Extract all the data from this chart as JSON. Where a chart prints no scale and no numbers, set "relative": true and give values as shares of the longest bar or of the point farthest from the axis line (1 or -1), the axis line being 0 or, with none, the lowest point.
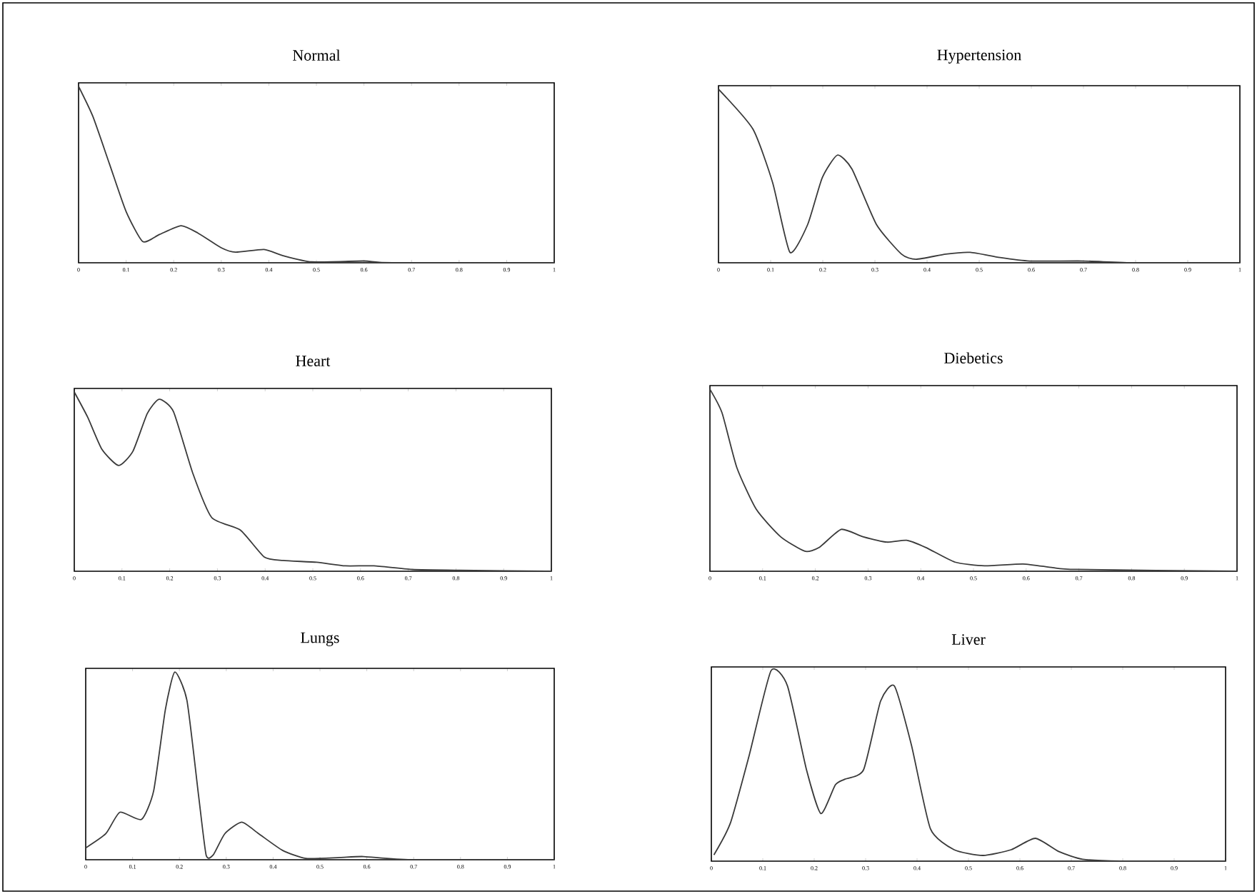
{
  "chart_data": [
    {
      "type": "line",
      "title": "Normal",
      "relative": true,
      "color": "#3a3a3a",
      "xlim": [
        0,
        1
      ],
      "xticks": [
        0,
        0.1,
        0.2,
        0.3,
        0.4,
        0.5,
        0.6,
        0.7,
        0.8,
        0.9,
        1
      ],
      "tick_labels": "x",
      "x": [
        0,
        0.03,
        0.065,
        0.1,
        0.135,
        0.17,
        0.215,
        0.25,
        0.3,
        0.33,
        0.39,
        0.43,
        0.49,
        0.6,
        0.66,
        1
      ],
      "values": [
        1,
        0.83,
        0.56,
        0.29,
        0.12,
        0.16,
        0.21,
        0.17,
        0.085,
        0.06,
        0.075,
        0.04,
        0.005,
        0.01,
        0,
        0
      ]
    },
    {
      "type": "line",
      "title": "Hypertension",
      "relative": true,
      "color": "#3a3a3a",
      "xlim": [
        0,
        1
      ],
      "xticks": [
        0,
        0.1,
        0.2,
        0.3,
        0.4,
        0.5,
        0.6,
        0.7,
        0.8,
        0.9,
        1
      ],
      "tick_labels": "x",
      "x": [
        0,
        0.066,
        0.104,
        0.137,
        0.171,
        0.199,
        0.228,
        0.256,
        0.303,
        0.351,
        0.379,
        0.436,
        0.483,
        0.54,
        0.597,
        0.7,
        0.8,
        1
      ],
      "values": [
        1,
        0.77,
        0.46,
        0.06,
        0.22,
        0.49,
        0.62,
        0.54,
        0.22,
        0.05,
        0.02,
        0.05,
        0.06,
        0.03,
        0.01,
        0.01,
        0,
        0
      ]
    },
    {
      "type": "line",
      "title": "Heart",
      "relative": true,
      "color": "#3a3a3a",
      "xlim": [
        0,
        1
      ],
      "xticks": [
        0,
        0.1,
        0.2,
        0.3,
        0.4,
        0.5,
        0.6,
        0.7,
        0.8,
        0.9,
        1
      ],
      "tick_labels": "x",
      "x": [
        0,
        0.028,
        0.058,
        0.093,
        0.123,
        0.153,
        0.178,
        0.208,
        0.248,
        0.288,
        0.348,
        0.398,
        0.438,
        0.508,
        0.568,
        0.628,
        0.708,
        0.808,
        1
      ],
      "values": [
        1,
        0.86,
        0.68,
        0.59,
        0.67,
        0.88,
        0.96,
        0.89,
        0.55,
        0.3,
        0.23,
        0.08,
        0.06,
        0.05,
        0.03,
        0.03,
        0.01,
        0.005,
        0
      ]
    },
    {
      "type": "line",
      "title": "Diebetics",
      "relative": true,
      "color": "#3a3a3a",
      "xlim": [
        0,
        1
      ],
      "xticks": [
        0,
        0.1,
        0.2,
        0.3,
        0.4,
        0.5,
        0.6,
        0.7,
        0.8,
        0.9,
        1
      ],
      "tick_labels": "x",
      "x": [
        0,
        0.023,
        0.051,
        0.088,
        0.134,
        0.18,
        0.207,
        0.249,
        0.29,
        0.336,
        0.373,
        0.41,
        0.465,
        0.521,
        0.594,
        0.65,
        0.696,
        1
      ],
      "values": [
        1,
        0.87,
        0.57,
        0.34,
        0.19,
        0.11,
        0.13,
        0.23,
        0.19,
        0.16,
        0.17,
        0.13,
        0.05,
        0.03,
        0.04,
        0.02,
        0.01,
        0
      ]
    },
    {
      "type": "line",
      "title": "Lungs",
      "relative": true,
      "color": "#3a3a3a",
      "xlim": [
        0,
        1
      ],
      "xticks": [
        0,
        0.1,
        0.2,
        0.3,
        0.4,
        0.5,
        0.6,
        0.7,
        0.8,
        0.9,
        1
      ],
      "tick_labels": "x",
      "x": [
        0,
        0.043,
        0.073,
        0.119,
        0.145,
        0.17,
        0.19,
        0.216,
        0.241,
        0.257,
        0.272,
        0.297,
        0.333,
        0.369,
        0.42,
        0.47,
        0.542,
        0.593,
        0.695,
        1
      ],
      "values": [
        0.063,
        0.139,
        0.253,
        0.215,
        0.367,
        0.8,
        1,
        0.85,
        0.34,
        0.025,
        0.025,
        0.139,
        0.2,
        0.139,
        0.05,
        0.007,
        0.012,
        0.017,
        0,
        0
      ]
    },
    {
      "type": "line",
      "title": "Liver",
      "relative": true,
      "color": "#3a3a3a",
      "xlim": [
        0,
        1
      ],
      "xticks": [
        0,
        0.1,
        0.2,
        0.3,
        0.4,
        0.5,
        0.6,
        0.7,
        0.8,
        0.9,
        1
      ],
      "tick_labels": "x",
      "x": [
        0.005,
        0.037,
        0.074,
        0.116,
        0.148,
        0.185,
        0.213,
        0.241,
        0.259,
        0.296,
        0.329,
        0.356,
        0.389,
        0.426,
        0.472,
        0.528,
        0.583,
        0.63,
        0.676,
        0.722,
        0.796,
        1
      ],
      "values": [
        0.033,
        0.2,
        0.56,
        1,
        0.92,
        0.48,
        0.25,
        0.4,
        0.43,
        0.48,
        0.84,
        0.92,
        0.61,
        0.17,
        0.06,
        0.03,
        0.06,
        0.12,
        0.05,
        0.01,
        0,
        0
      ]
    }
  ]
}
